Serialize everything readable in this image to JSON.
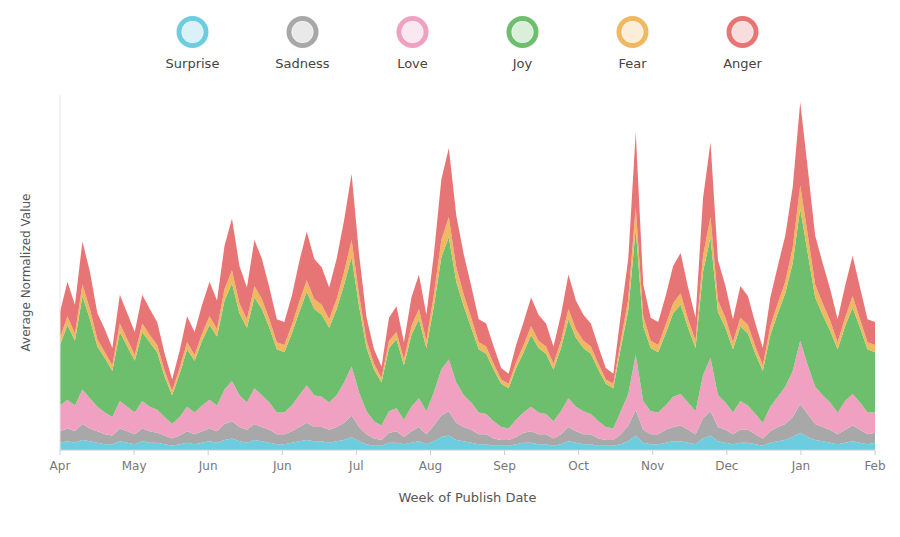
{
  "chart_data": {
    "type": "area",
    "stacked": true,
    "grid": false,
    "legend": "top",
    "tick_labels": "x",
    "xlabel": "Week of Publish Date",
    "ylabel": "Average Normalized Value",
    "x": [
      0,
      1,
      2,
      3,
      4,
      5,
      6,
      7,
      8,
      9,
      10,
      11,
      12,
      13,
      14,
      15,
      16,
      17,
      18,
      19,
      20,
      21,
      22,
      23,
      24,
      25,
      26,
      27,
      28,
      29,
      30,
      31,
      32,
      33,
      34,
      35,
      36,
      37,
      38,
      39,
      40,
      41,
      42,
      43,
      44,
      45,
      46,
      47,
      48,
      49,
      50,
      51,
      52,
      53,
      54,
      55,
      56,
      57,
      58,
      59,
      60,
      61,
      62,
      63,
      64,
      65,
      66,
      67,
      68,
      69,
      70,
      71,
      72,
      73,
      74,
      75,
      76,
      77,
      78,
      79,
      80,
      81,
      82,
      83,
      84,
      85,
      86,
      87,
      88,
      89,
      90,
      91,
      92,
      93,
      94,
      95,
      96,
      97,
      98,
      99,
      100,
      101,
      102,
      103,
      104,
      105,
      106,
      107,
      108,
      109
    ],
    "xlim": [
      0,
      109
    ],
    "xticks": [
      {
        "value": 0,
        "label": "Apr"
      },
      {
        "value": 9.909090909090908,
        "label": "May"
      },
      {
        "value": 19.818181818181817,
        "label": "Jun"
      },
      {
        "value": 29.727272727272727,
        "label": "Jun"
      },
      {
        "value": 39.63636363636363,
        "label": "Jul"
      },
      {
        "value": 49.54545454545455,
        "label": "Aug"
      },
      {
        "value": 59.45454545454545,
        "label": "Sep"
      },
      {
        "value": 69.36363636363636,
        "label": "Oct"
      },
      {
        "value": 79.27272727272727,
        "label": "Nov"
      },
      {
        "value": 89.18181818181819,
        "label": "Dec"
      },
      {
        "value": 99.0909090909091,
        "label": "Jan"
      },
      {
        "value": 109,
        "label": "Feb"
      }
    ],
    "ylim": [
      0,
      2.4684
    ],
    "series": [
      {
        "name": "Surprise",
        "color": "#6dcde0",
        "values": [
          0.05,
          0.06,
          0.05,
          0.07,
          0.06,
          0.05,
          0.04,
          0.04,
          0.06,
          0.05,
          0.04,
          0.06,
          0.05,
          0.05,
          0.04,
          0.03,
          0.04,
          0.05,
          0.04,
          0.05,
          0.06,
          0.05,
          0.07,
          0.08,
          0.06,
          0.05,
          0.07,
          0.06,
          0.05,
          0.04,
          0.04,
          0.05,
          0.06,
          0.07,
          0.06,
          0.06,
          0.05,
          0.06,
          0.07,
          0.09,
          0.06,
          0.04,
          0.03,
          0.03,
          0.05,
          0.05,
          0.04,
          0.05,
          0.06,
          0.04,
          0.06,
          0.09,
          0.1,
          0.07,
          0.06,
          0.05,
          0.04,
          0.04,
          0.03,
          0.03,
          0.03,
          0.04,
          0.05,
          0.05,
          0.04,
          0.04,
          0.03,
          0.04,
          0.06,
          0.05,
          0.04,
          0.04,
          0.03,
          0.03,
          0.03,
          0.04,
          0.06,
          0.1,
          0.05,
          0.04,
          0.04,
          0.05,
          0.06,
          0.06,
          0.05,
          0.04,
          0.08,
          0.1,
          0.06,
          0.05,
          0.04,
          0.05,
          0.05,
          0.04,
          0.03,
          0.05,
          0.06,
          0.07,
          0.09,
          0.12,
          0.09,
          0.07,
          0.06,
          0.05,
          0.04,
          0.05,
          0.06,
          0.05,
          0.04,
          0.05
        ]
      },
      {
        "name": "Sadness",
        "color": "#a8a8a8",
        "values": [
          0.08,
          0.09,
          0.08,
          0.11,
          0.09,
          0.08,
          0.07,
          0.06,
          0.09,
          0.08,
          0.07,
          0.09,
          0.08,
          0.07,
          0.06,
          0.05,
          0.06,
          0.08,
          0.07,
          0.08,
          0.09,
          0.08,
          0.11,
          0.12,
          0.1,
          0.09,
          0.11,
          0.1,
          0.09,
          0.07,
          0.07,
          0.08,
          0.1,
          0.12,
          0.1,
          0.1,
          0.09,
          0.1,
          0.12,
          0.15,
          0.1,
          0.07,
          0.05,
          0.04,
          0.07,
          0.08,
          0.05,
          0.08,
          0.1,
          0.07,
          0.11,
          0.15,
          0.17,
          0.12,
          0.1,
          0.09,
          0.07,
          0.07,
          0.05,
          0.04,
          0.04,
          0.05,
          0.07,
          0.08,
          0.07,
          0.07,
          0.05,
          0.07,
          0.1,
          0.08,
          0.07,
          0.07,
          0.05,
          0.04,
          0.04,
          0.07,
          0.11,
          0.18,
          0.09,
          0.07,
          0.07,
          0.09,
          0.1,
          0.11,
          0.09,
          0.07,
          0.14,
          0.17,
          0.1,
          0.09,
          0.07,
          0.09,
          0.09,
          0.07,
          0.05,
          0.08,
          0.1,
          0.11,
          0.14,
          0.2,
          0.16,
          0.11,
          0.1,
          0.09,
          0.07,
          0.09,
          0.11,
          0.09,
          0.07,
          0.07
        ]
      },
      {
        "name": "Love",
        "color": "#f0a0c0",
        "values": [
          0.18,
          0.2,
          0.18,
          0.24,
          0.21,
          0.17,
          0.15,
          0.13,
          0.19,
          0.17,
          0.15,
          0.19,
          0.17,
          0.16,
          0.13,
          0.1,
          0.13,
          0.17,
          0.15,
          0.18,
          0.2,
          0.18,
          0.24,
          0.28,
          0.22,
          0.19,
          0.25,
          0.22,
          0.19,
          0.15,
          0.15,
          0.18,
          0.22,
          0.26,
          0.22,
          0.21,
          0.19,
          0.22,
          0.28,
          0.34,
          0.24,
          0.16,
          0.12,
          0.1,
          0.15,
          0.16,
          0.12,
          0.17,
          0.2,
          0.16,
          0.23,
          0.32,
          0.36,
          0.28,
          0.22,
          0.19,
          0.15,
          0.14,
          0.12,
          0.09,
          0.08,
          0.12,
          0.14,
          0.17,
          0.15,
          0.14,
          0.12,
          0.16,
          0.2,
          0.17,
          0.16,
          0.14,
          0.12,
          0.09,
          0.08,
          0.16,
          0.22,
          0.38,
          0.2,
          0.16,
          0.15,
          0.17,
          0.21,
          0.22,
          0.19,
          0.16,
          0.3,
          0.37,
          0.22,
          0.19,
          0.15,
          0.2,
          0.17,
          0.14,
          0.11,
          0.17,
          0.21,
          0.26,
          0.32,
          0.44,
          0.34,
          0.26,
          0.22,
          0.19,
          0.15,
          0.2,
          0.22,
          0.19,
          0.15,
          0.14
        ]
      },
      {
        "name": "Joy",
        "color": "#6dbf6d",
        "values": [
          0.42,
          0.52,
          0.45,
          0.65,
          0.55,
          0.42,
          0.38,
          0.32,
          0.48,
          0.42,
          0.36,
          0.48,
          0.45,
          0.4,
          0.28,
          0.2,
          0.3,
          0.4,
          0.36,
          0.45,
          0.52,
          0.48,
          0.62,
          0.68,
          0.57,
          0.52,
          0.63,
          0.6,
          0.52,
          0.44,
          0.42,
          0.5,
          0.58,
          0.65,
          0.6,
          0.57,
          0.52,
          0.6,
          0.68,
          0.76,
          0.6,
          0.44,
          0.36,
          0.3,
          0.44,
          0.48,
          0.38,
          0.5,
          0.55,
          0.44,
          0.6,
          0.78,
          0.85,
          0.7,
          0.62,
          0.52,
          0.44,
          0.42,
          0.36,
          0.3,
          0.28,
          0.36,
          0.42,
          0.5,
          0.45,
          0.42,
          0.36,
          0.44,
          0.55,
          0.48,
          0.44,
          0.42,
          0.36,
          0.3,
          0.28,
          0.44,
          0.58,
          0.88,
          0.52,
          0.44,
          0.42,
          0.5,
          0.58,
          0.62,
          0.52,
          0.44,
          0.72,
          0.84,
          0.58,
          0.52,
          0.44,
          0.52,
          0.5,
          0.42,
          0.36,
          0.5,
          0.58,
          0.65,
          0.75,
          0.92,
          0.78,
          0.62,
          0.56,
          0.5,
          0.44,
          0.52,
          0.6,
          0.52,
          0.44,
          0.42
        ]
      },
      {
        "name": "Fear",
        "color": "#f0b860",
        "values": [
          0.05,
          0.06,
          0.05,
          0.08,
          0.07,
          0.05,
          0.04,
          0.04,
          0.06,
          0.05,
          0.04,
          0.06,
          0.05,
          0.05,
          0.04,
          0.03,
          0.04,
          0.05,
          0.04,
          0.05,
          0.06,
          0.05,
          0.08,
          0.09,
          0.07,
          0.06,
          0.08,
          0.07,
          0.06,
          0.05,
          0.05,
          0.06,
          0.07,
          0.08,
          0.07,
          0.07,
          0.06,
          0.07,
          0.09,
          0.12,
          0.08,
          0.05,
          0.04,
          0.03,
          0.05,
          0.05,
          0.04,
          0.06,
          0.07,
          0.05,
          0.08,
          0.12,
          0.14,
          0.1,
          0.08,
          0.07,
          0.05,
          0.05,
          0.04,
          0.03,
          0.03,
          0.04,
          0.05,
          0.06,
          0.05,
          0.05,
          0.04,
          0.05,
          0.07,
          0.06,
          0.05,
          0.05,
          0.04,
          0.03,
          0.03,
          0.05,
          0.08,
          0.15,
          0.07,
          0.05,
          0.05,
          0.06,
          0.07,
          0.08,
          0.06,
          0.05,
          0.11,
          0.14,
          0.08,
          0.07,
          0.05,
          0.06,
          0.06,
          0.05,
          0.04,
          0.06,
          0.07,
          0.08,
          0.11,
          0.16,
          0.13,
          0.09,
          0.08,
          0.07,
          0.05,
          0.06,
          0.08,
          0.06,
          0.05,
          0.05
        ]
      },
      {
        "name": "Anger",
        "color": "#e87575",
        "values": [
          0.18,
          0.24,
          0.2,
          0.3,
          0.26,
          0.18,
          0.16,
          0.12,
          0.2,
          0.18,
          0.16,
          0.2,
          0.18,
          0.16,
          0.12,
          0.08,
          0.12,
          0.18,
          0.16,
          0.2,
          0.24,
          0.2,
          0.3,
          0.36,
          0.26,
          0.22,
          0.32,
          0.28,
          0.22,
          0.16,
          0.16,
          0.2,
          0.28,
          0.34,
          0.28,
          0.26,
          0.22,
          0.28,
          0.36,
          0.46,
          0.28,
          0.16,
          0.1,
          0.08,
          0.16,
          0.18,
          0.12,
          0.2,
          0.24,
          0.18,
          0.28,
          0.42,
          0.48,
          0.36,
          0.28,
          0.22,
          0.16,
          0.16,
          0.12,
          0.08,
          0.07,
          0.12,
          0.16,
          0.2,
          0.18,
          0.16,
          0.12,
          0.18,
          0.24,
          0.2,
          0.18,
          0.16,
          0.12,
          0.08,
          0.07,
          0.18,
          0.28,
          0.52,
          0.22,
          0.16,
          0.16,
          0.2,
          0.26,
          0.28,
          0.22,
          0.16,
          0.4,
          0.52,
          0.28,
          0.22,
          0.16,
          0.22,
          0.2,
          0.16,
          0.12,
          0.2,
          0.26,
          0.32,
          0.42,
          0.58,
          0.46,
          0.34,
          0.28,
          0.22,
          0.16,
          0.22,
          0.28,
          0.22,
          0.16,
          0.16
        ]
      }
    ]
  }
}
